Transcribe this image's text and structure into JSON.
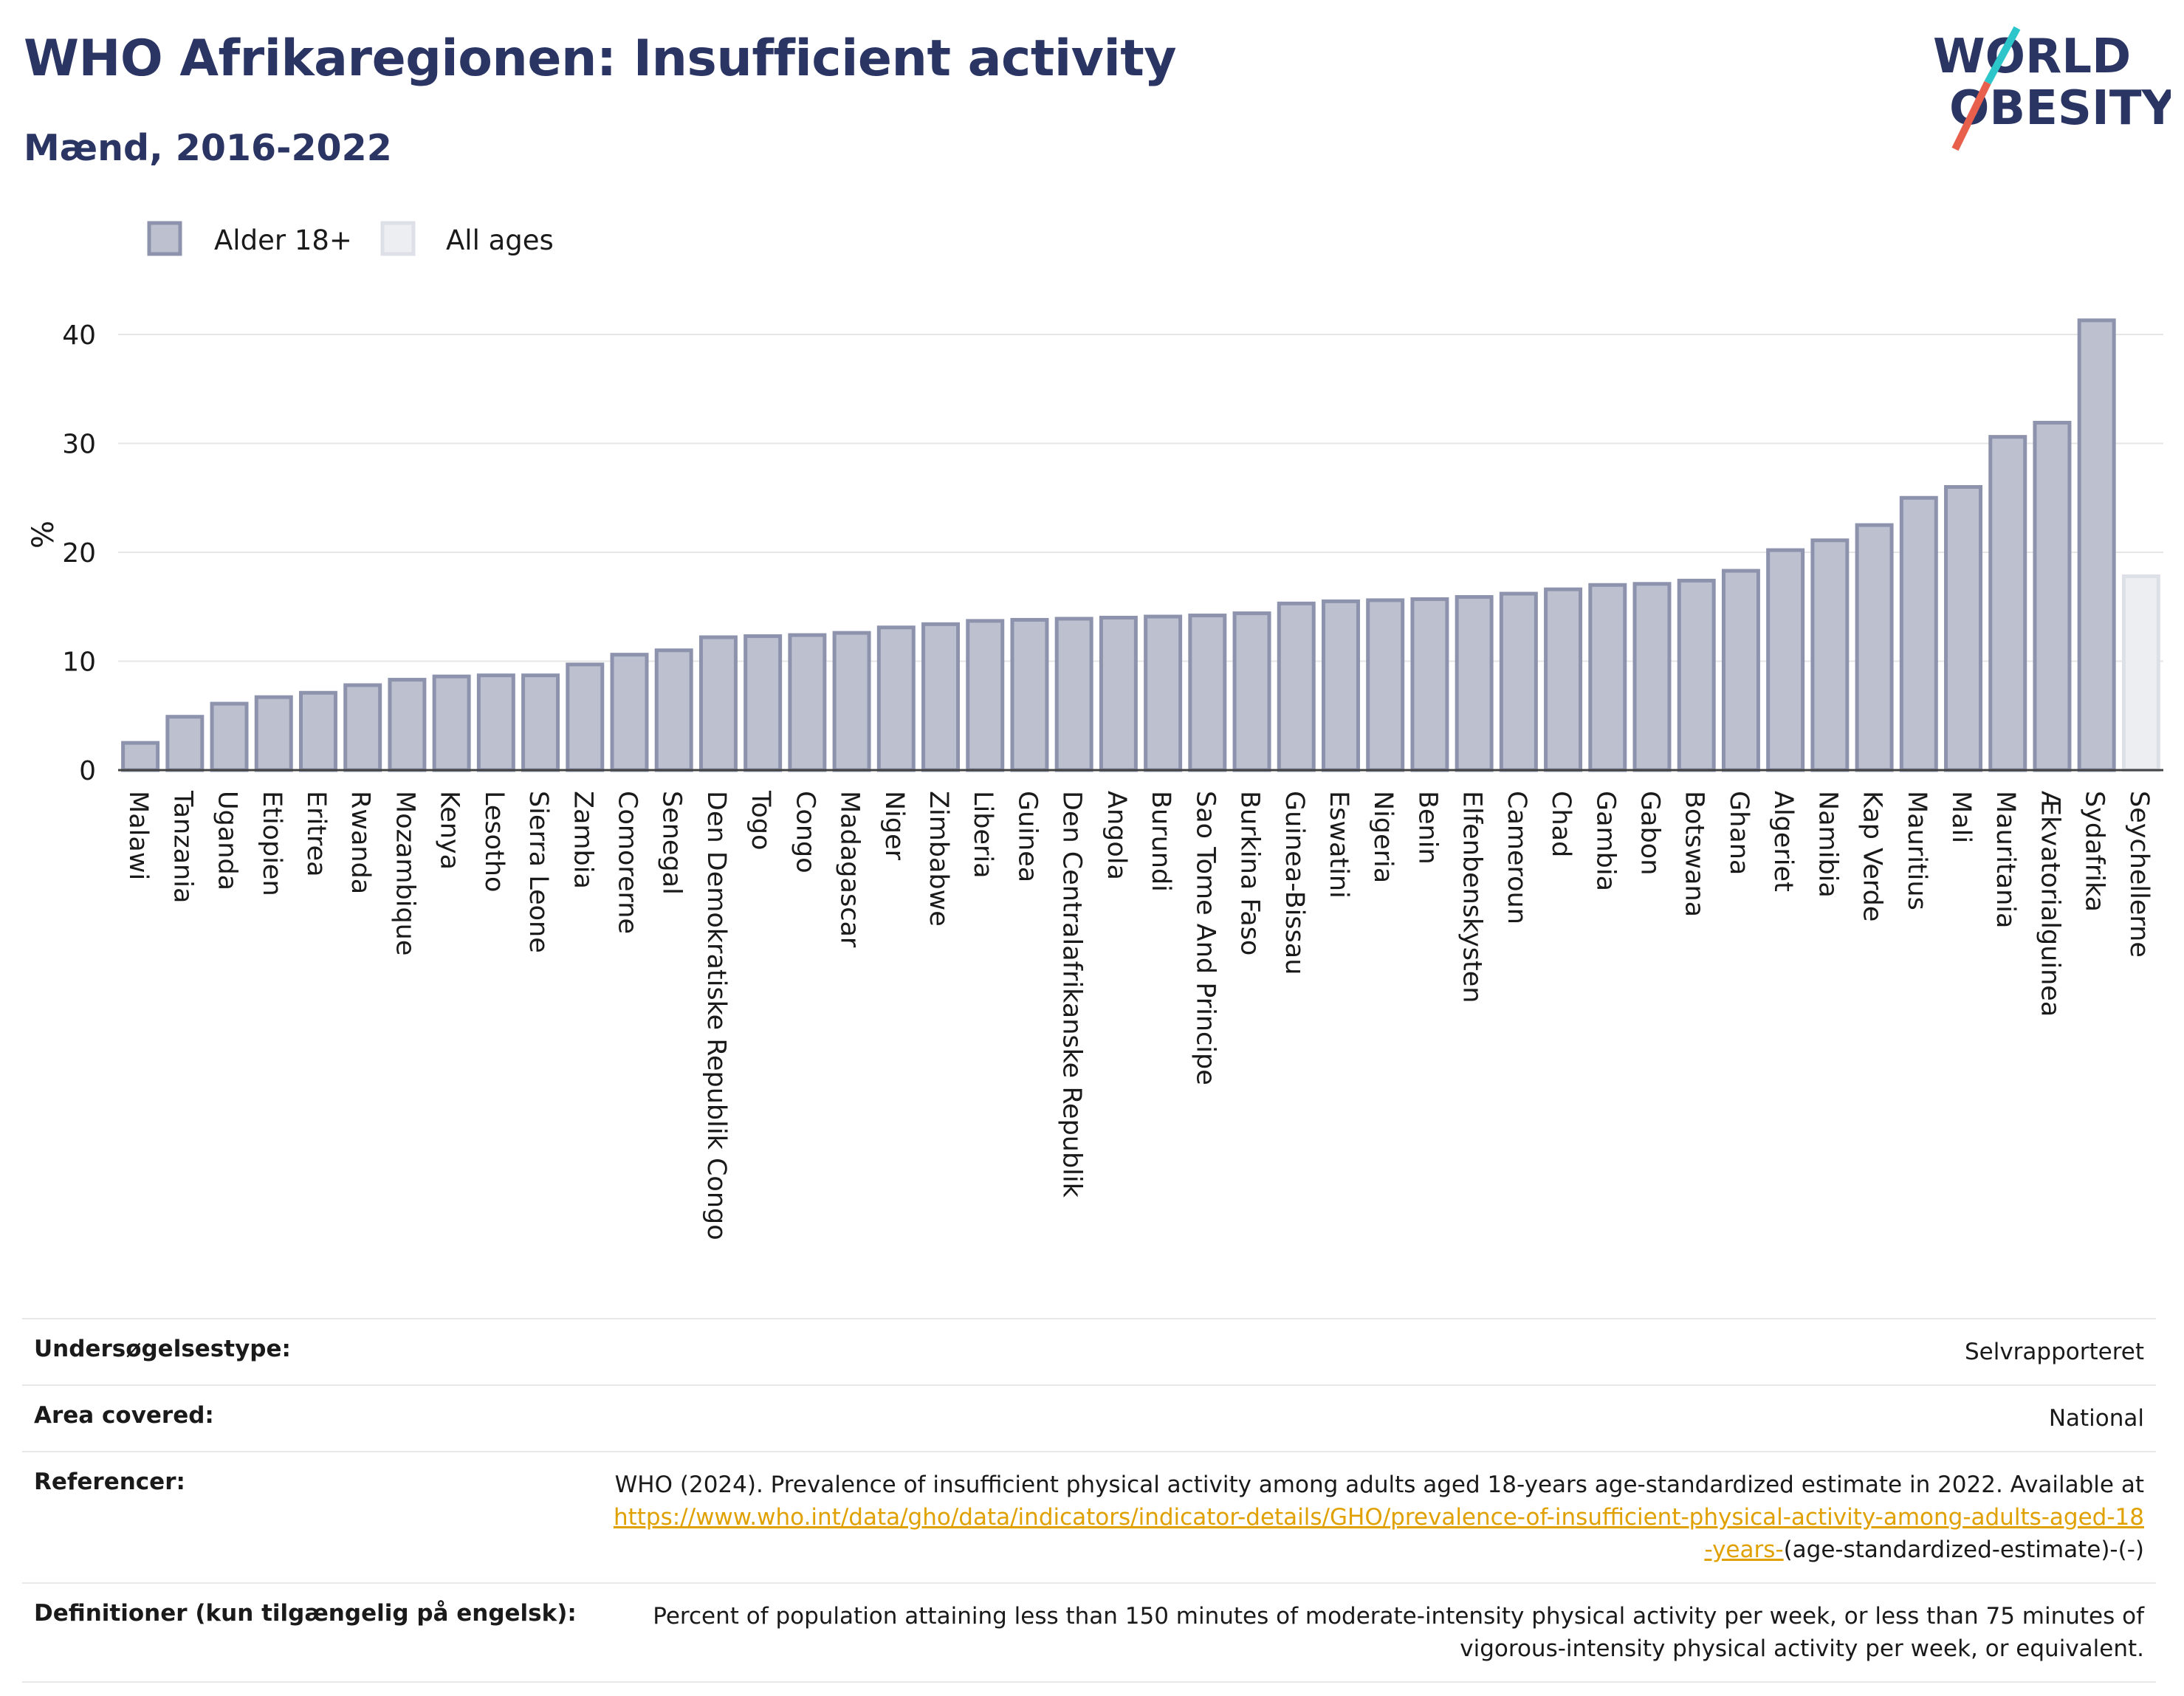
{
  "header": {
    "title": "WHO Afrikaregionen: Insufficient activity",
    "subtitle": "Mænd, 2016-2022",
    "logo_line1": "WORLD",
    "logo_line2": "OBESITY"
  },
  "colors": {
    "title": "#2b3564",
    "bar_adult_fill": "#bcc0cf",
    "bar_adult_stroke": "#8d93ad",
    "bar_allages_fill": "#eceef2",
    "bar_allages_stroke": "#dde0e7",
    "link": "#e0a100",
    "logo_teal": "#2cc5c9",
    "logo_red": "#e8604c"
  },
  "chart_data": {
    "type": "bar",
    "ylabel": "%",
    "ylim": [
      0,
      45
    ],
    "yticks": [
      0,
      10,
      20,
      30,
      40
    ],
    "grid": true,
    "legend_placement": "top-left",
    "series": [
      {
        "name": "Alder 18+",
        "color_key": "adult"
      },
      {
        "name": "All ages",
        "color_key": "allages"
      }
    ],
    "categories": [
      "Malawi",
      "Tanzania",
      "Uganda",
      "Etiopien",
      "Eritrea",
      "Rwanda",
      "Mozambique",
      "Kenya",
      "Lesotho",
      "Sierra Leone",
      "Zambia",
      "Comorerne",
      "Senegal",
      "Den Demokratiske Republik Congo",
      "Togo",
      "Congo",
      "Madagascar",
      "Niger",
      "Zimbabwe",
      "Liberia",
      "Guinea",
      "Den Centralafrikanske Republik",
      "Angola",
      "Burundi",
      "Sao Tome And Principe",
      "Burkina Faso",
      "Guinea-Bissau",
      "Eswatini",
      "Nigeria",
      "Benin",
      "Elfenbenskysten",
      "Cameroun",
      "Chad",
      "Gambia",
      "Gabon",
      "Botswana",
      "Ghana",
      "Algeriet",
      "Namibia",
      "Kap Verde",
      "Mauritius",
      "Mali",
      "Mauritania",
      "Ækvatorialguinea",
      "Sydafrika",
      "Seychellerne"
    ],
    "values": [
      2.5,
      4.9,
      6.1,
      6.7,
      7.1,
      7.8,
      8.3,
      8.6,
      8.7,
      8.7,
      9.7,
      10.6,
      11.0,
      12.2,
      12.3,
      12.4,
      12.6,
      13.1,
      13.4,
      13.7,
      13.8,
      13.9,
      14.0,
      14.1,
      14.2,
      14.4,
      15.3,
      15.5,
      15.6,
      15.7,
      15.9,
      16.2,
      16.6,
      17.0,
      17.1,
      17.4,
      18.3,
      20.2,
      21.1,
      22.5,
      25.0,
      26.0,
      30.6,
      31.9,
      41.3,
      17.8
    ],
    "value_series": [
      "adult",
      "adult",
      "adult",
      "adult",
      "adult",
      "adult",
      "adult",
      "adult",
      "adult",
      "adult",
      "adult",
      "adult",
      "adult",
      "adult",
      "adult",
      "adult",
      "adult",
      "adult",
      "adult",
      "adult",
      "adult",
      "adult",
      "adult",
      "adult",
      "adult",
      "adult",
      "adult",
      "adult",
      "adult",
      "adult",
      "adult",
      "adult",
      "adult",
      "adult",
      "adult",
      "adult",
      "adult",
      "adult",
      "adult",
      "adult",
      "adult",
      "adult",
      "adult",
      "adult",
      "adult",
      "allages"
    ]
  },
  "info": {
    "rows": [
      {
        "key": "Undersøgelsestype:",
        "value": "Selvrapporteret"
      },
      {
        "key": "Area covered:",
        "value": "National"
      },
      {
        "key": "Referencer:",
        "value_pre": "WHO (2024). Prevalence of insufficient physical activity among adults aged 18-years age-standardized estimate in 2022. Available at",
        "link": "https://www.who.int/data/gho/data/indicators/indicator-details/GHO/prevalence-of-insufficient-physical-activity-among-adults-aged-18-years-",
        "value_post": "(age-standardized-estimate)-(-)"
      },
      {
        "key": "Definitioner (kun tilgængelig på engelsk):",
        "value": "Percent of population attaining less than 150 minutes of moderate-intensity physical activity per week, or less than 75 minutes of vigorous-intensity physical activity per week, or equivalent."
      }
    ]
  }
}
